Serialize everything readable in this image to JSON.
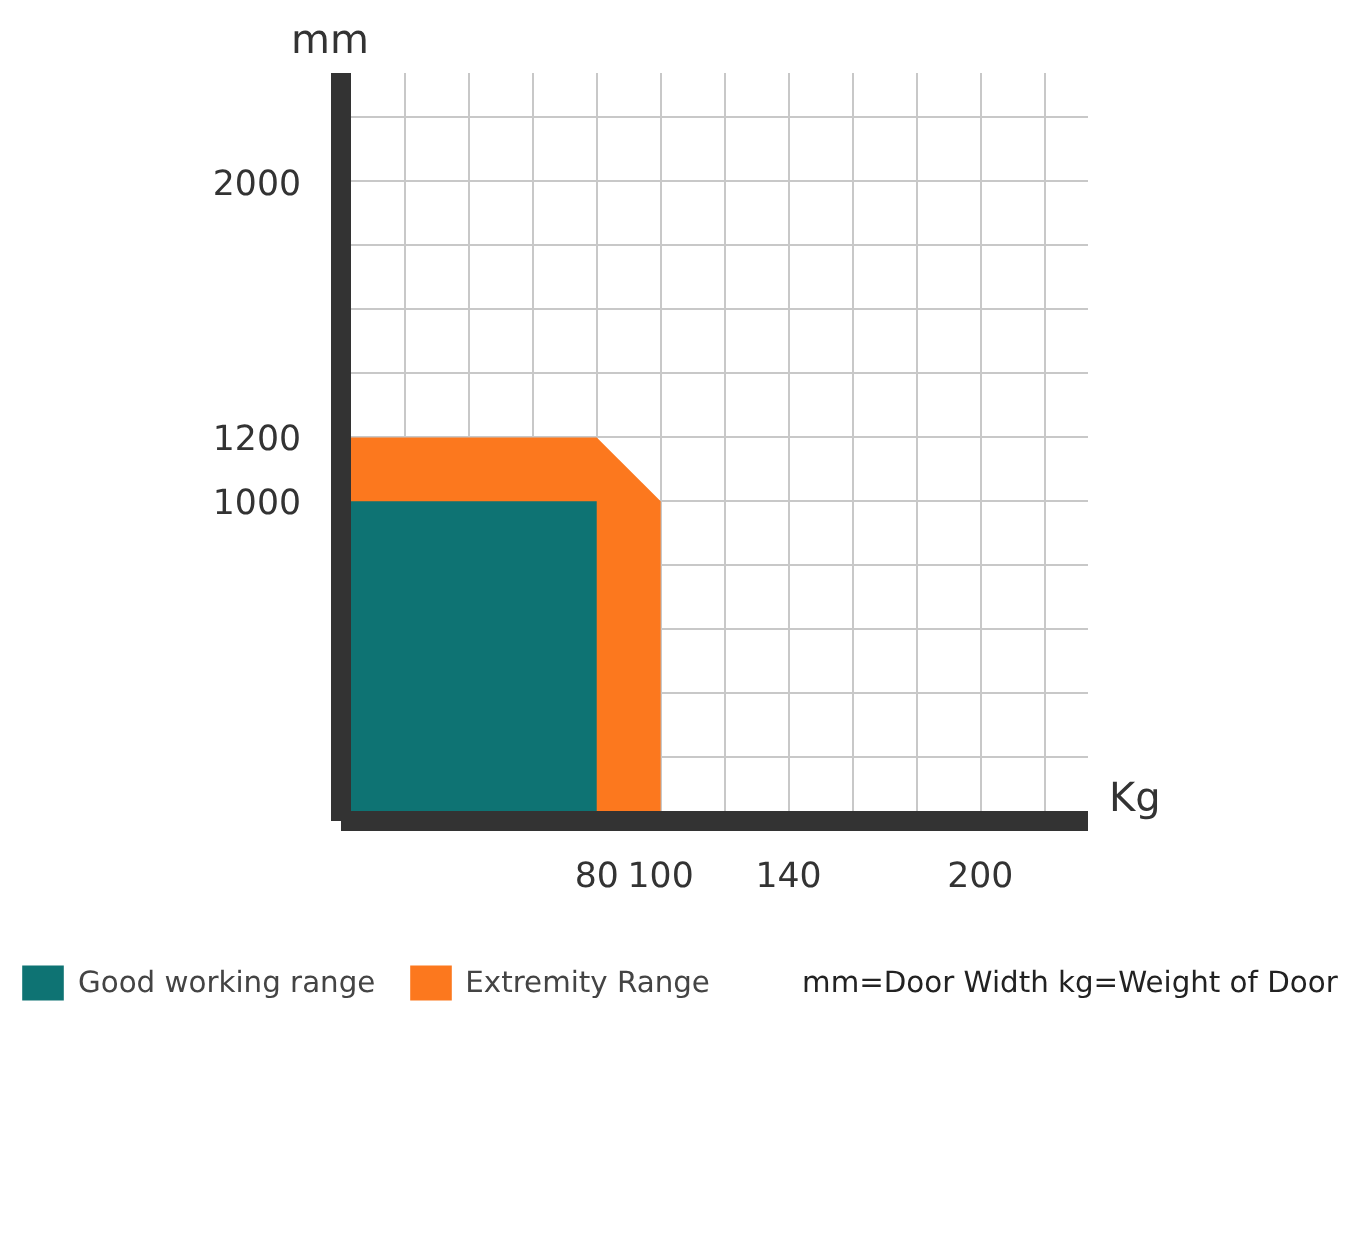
{
  "chart_data": {
    "type": "area",
    "xlabel": "Kg",
    "ylabel": "mm",
    "series": [
      {
        "name": "Extremity Range",
        "color": "#fc781e",
        "x": [
          0,
          80,
          100
        ],
        "values": [
          1200,
          1200,
          1000
        ]
      },
      {
        "name": "Good working range",
        "color": "#0e7373",
        "x": [
          0,
          80
        ],
        "values": [
          1000,
          1000
        ]
      }
    ],
    "xlim": [
      0,
      234
    ],
    "ylim": [
      0,
      2340
    ],
    "xticks": [
      {
        "value": 20,
        "label": null
      },
      {
        "value": 40,
        "label": null
      },
      {
        "value": 60,
        "label": null
      },
      80,
      100,
      {
        "value": 120,
        "label": null
      },
      140,
      {
        "value": 160,
        "label": null
      },
      {
        "value": 180,
        "label": null
      },
      200,
      {
        "value": 220,
        "label": null
      }
    ],
    "yticks": [
      {
        "value": 200,
        "label": null
      },
      {
        "value": 400,
        "label": null
      },
      {
        "value": 600,
        "label": null
      },
      {
        "value": 800,
        "label": null
      },
      1000,
      1200,
      {
        "value": 1400,
        "label": null
      },
      {
        "value": 1600,
        "label": null
      },
      {
        "value": 1800,
        "label": null
      },
      2000,
      {
        "value": 2200,
        "label": null
      }
    ],
    "grid": true,
    "legend": "bottom",
    "annotations": [
      "mm=Door Width  kg=Weight of Door"
    ]
  }
}
